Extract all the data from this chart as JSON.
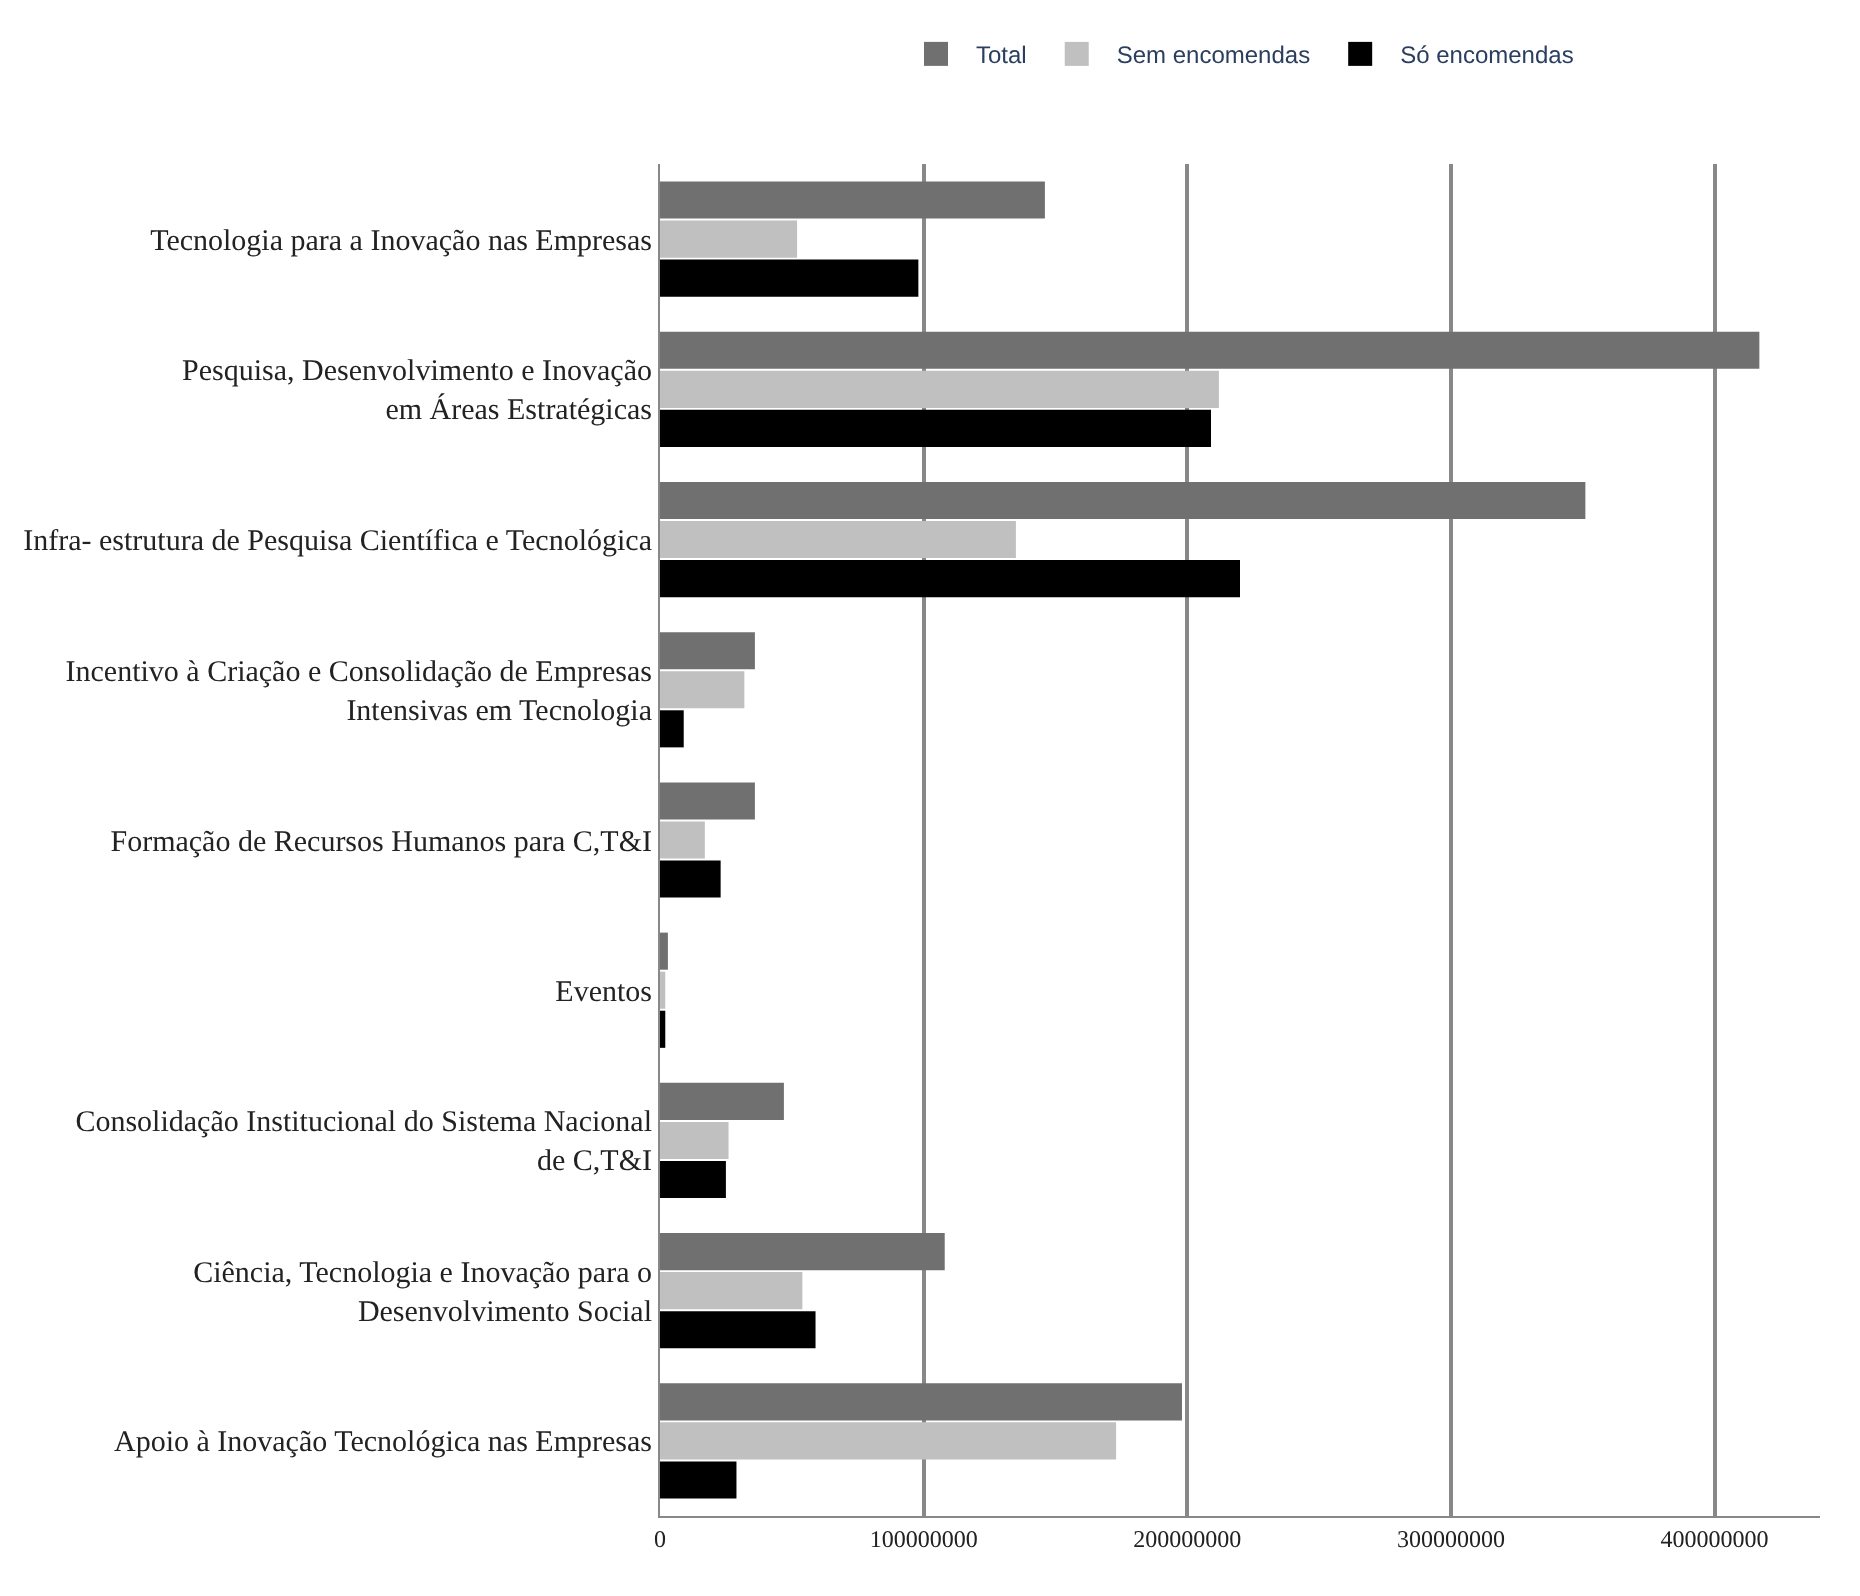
{
  "chart_data": {
    "type": "bar",
    "orientation": "horizontal",
    "categories": [
      "Tecnologia para a Inovação nas Empresas",
      "Pesquisa, Desenvolvimento e Inovação\nem Áreas Estratégicas",
      "Infra- estrutura de Pesquisa Científica e Tecnológica",
      "Incentivo à Criação e Consolidação de Empresas\nIntensivas em Tecnologia",
      "Formação de Recursos Humanos para C,T&I",
      "Eventos",
      "Consolidação Institucional do Sistema Nacional\nde C,T&I",
      "Ciência, Tecnologia e Inovação para o\nDesenvolvimento Social",
      "Apoio à Inovação Tecnológica nas Empresas"
    ],
    "series": [
      {
        "name": "Total",
        "color": "#707070",
        "values": [
          146000000,
          417000000,
          351000000,
          36000000,
          36000000,
          3000000,
          47000000,
          108000000,
          198000000
        ]
      },
      {
        "name": "Sem encomendas",
        "color": "#c0c0c0",
        "values": [
          52000000,
          212000000,
          135000000,
          32000000,
          17000000,
          2000000,
          26000000,
          54000000,
          173000000
        ]
      },
      {
        "name": "Só encomendas",
        "color": "#000000",
        "values": [
          98000000,
          209000000,
          220000000,
          9000000,
          23000000,
          2000000,
          25000000,
          59000000,
          29000000
        ]
      }
    ],
    "xlim": [
      0,
      440000000
    ],
    "xticks": [
      0,
      100000000,
      200000000,
      300000000,
      400000000
    ],
    "grid": "x",
    "legend": "top"
  }
}
